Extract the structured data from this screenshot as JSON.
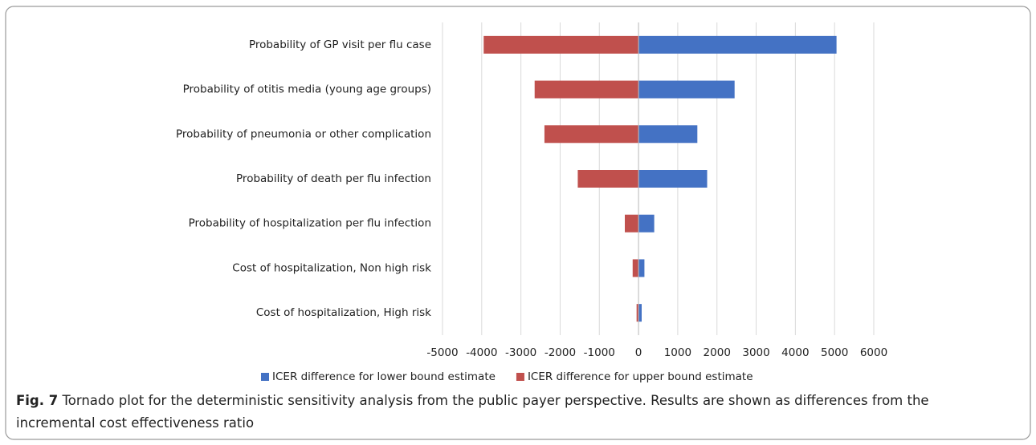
{
  "chart_data": {
    "type": "tornado",
    "categories": [
      "Probability of GP visit per flu case",
      "Probability of otitis media (young age groups)",
      "Probability of pneumonia or other complication",
      "Probability of death per flu infection",
      "Probability of hospitalization per flu infection",
      "Cost of hospitalization, Non high risk",
      "Cost of hospitalization, High risk"
    ],
    "series": [
      {
        "name": "ICER difference for lower bound estimate",
        "color": "#4472c4",
        "values": [
          5050,
          2450,
          1500,
          1750,
          400,
          150,
          80
        ]
      },
      {
        "name": "ICER difference for upper bound estimate",
        "color": "#c0504d",
        "values": [
          -3950,
          -2650,
          -2400,
          -1550,
          -350,
          -150,
          -50
        ]
      }
    ],
    "xlim": [
      -5000,
      6000
    ],
    "xticks": [
      -5000,
      -4000,
      -3000,
      -2000,
      -1000,
      0,
      1000,
      2000,
      3000,
      4000,
      5000,
      6000
    ],
    "grid": true,
    "legend": "bottom",
    "caption_label": "Fig. 7",
    "caption": "Tornado plot for the deterministic sensitivity analysis from the public payer perspective. Results are shown as differences from the incremental cost effectiveness ratio"
  }
}
